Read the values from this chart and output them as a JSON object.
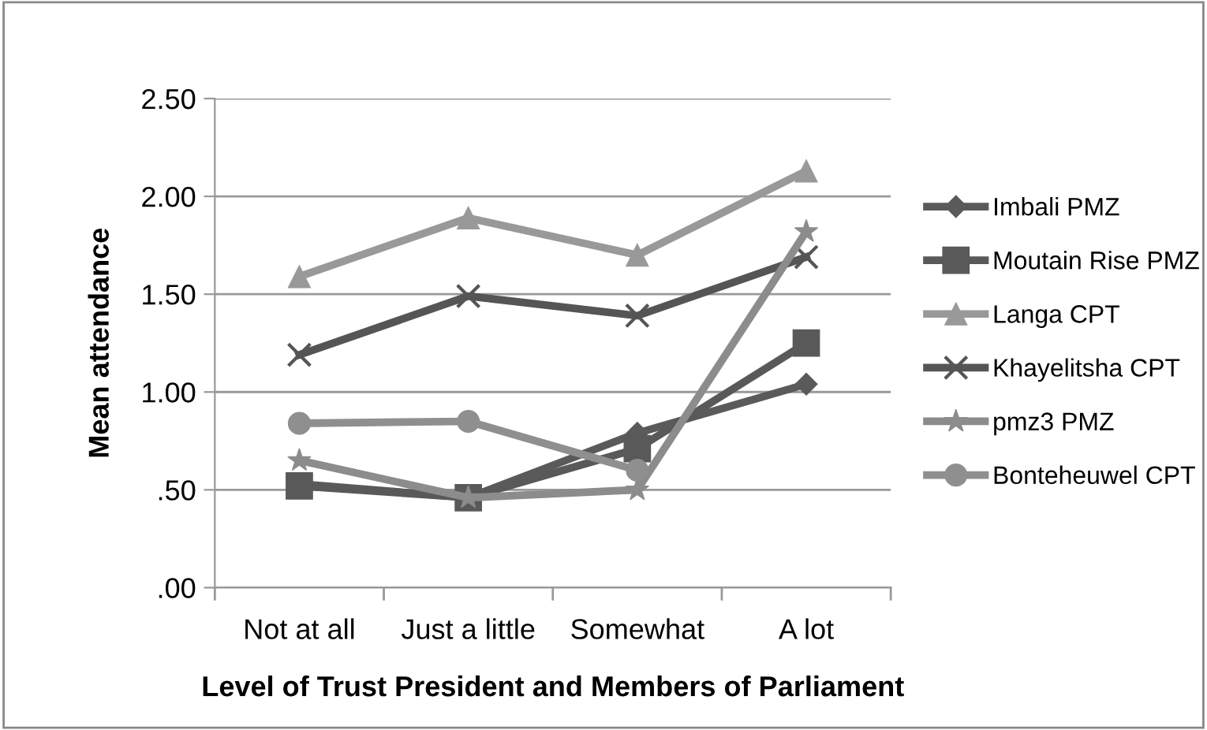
{
  "chart_data": {
    "type": "line",
    "xlabel": "Level of Trust President and Members of Parliament",
    "ylabel": "Mean attendance",
    "categories": [
      "Not at all",
      "Just a little",
      "Somewhat",
      "A lot"
    ],
    "ylim": [
      0,
      2.5
    ],
    "yticks": [
      {
        "value": 0,
        "label": ".00"
      },
      {
        "value": 0.5,
        "label": ".50"
      },
      {
        "value": 1,
        "label": "1.00"
      },
      {
        "value": 1.5,
        "label": "1.50"
      },
      {
        "value": 2,
        "label": "2.00"
      },
      {
        "value": 2.5,
        "label": "2.50"
      }
    ],
    "grid": "y",
    "legend": "right",
    "series": [
      {
        "name": "Imbali PMZ",
        "color": "#5a5a5a",
        "marker": "diamond",
        "values": [
          0.53,
          0.46,
          0.79,
          1.04
        ]
      },
      {
        "name": "Moutain Rise PMZ",
        "color": "#595959",
        "marker": "square",
        "values": [
          0.52,
          0.46,
          0.71,
          1.25
        ]
      },
      {
        "name": "Langa CPT",
        "color": "#999999",
        "marker": "triangle",
        "values": [
          1.59,
          1.89,
          1.7,
          2.13
        ]
      },
      {
        "name": "Khayelitsha CPT",
        "color": "#555555",
        "marker": "cross",
        "values": [
          1.19,
          1.49,
          1.39,
          1.69
        ]
      },
      {
        "name": "pmz3 PMZ",
        "color": "#8c8c8c",
        "marker": "star",
        "values": [
          0.65,
          0.46,
          0.5,
          1.82
        ]
      },
      {
        "name": "Bonteheuwel CPT",
        "color": "#8f8f8f",
        "marker": "circle",
        "values": [
          0.84,
          0.85,
          0.6,
          null
        ]
      }
    ]
  }
}
